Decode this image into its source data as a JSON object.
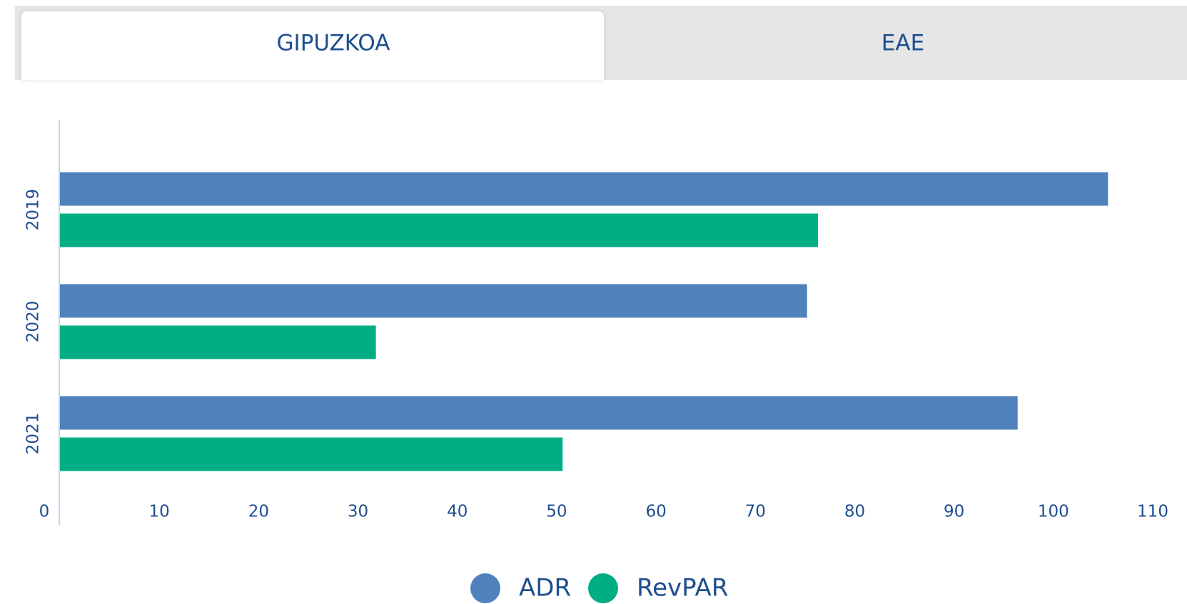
{
  "tabs": [
    "GIPUZKOA",
    "EAE"
  ],
  "chart_data": {
    "type": "hbar",
    "categories": [
      "2019",
      "2020",
      "2021"
    ],
    "series": [
      {
        "name": "ADR",
        "color": "#4f81bd",
        "values": [
          105.5,
          75.2,
          96.4
        ]
      },
      {
        "name": "RevPAR",
        "color": "#00ad84",
        "values": [
          76.3,
          31.8,
          50.6
        ]
      }
    ],
    "xlim": [
      0,
      110
    ],
    "xticks": [
      0,
      10,
      20,
      30,
      40,
      50,
      60,
      70,
      80,
      90,
      100,
      110
    ]
  }
}
